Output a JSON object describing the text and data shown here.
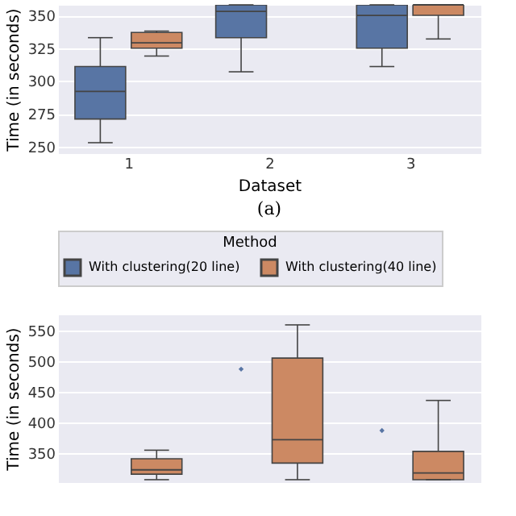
{
  "chart_data": [
    {
      "type": "box",
      "categories": [
        "1",
        "2",
        "3"
      ],
      "xlabel": "Dataset",
      "ylabel": "Time (in seconds)",
      "ylim": [
        245,
        358
      ],
      "yticks": [
        250,
        275,
        300,
        325,
        350
      ],
      "grid": "y",
      "legend": false,
      "annotations": [
        "(a)"
      ],
      "series": [
        {
          "color": "#5875a4",
          "boxes": [
            {
              "low": 253,
              "q1": 271,
              "median": 292,
              "q3": 311,
              "high": 333
            },
            {
              "low": 307,
              "q1": 333,
              "median": 353,
              "q3": 358,
              "high": 358
            },
            {
              "low": 311,
              "q1": 325,
              "median": 350,
              "q3": 358,
              "high": 358
            }
          ]
        },
        {
          "color": "#cc8963",
          "boxes": [
            {
              "low": 319,
              "q1": 325,
              "median": 329,
              "q3": 337,
              "high": 338
            },
            null,
            {
              "low": 332,
              "q1": 350,
              "median": 358,
              "q3": 358,
              "high": 358
            }
          ]
        }
      ]
    },
    {
      "type": "box",
      "categories": [
        null,
        null,
        null
      ],
      "ylabel": "Time (in seconds)",
      "ylim": [
        303,
        576
      ],
      "yticks": [
        350,
        400,
        450,
        500,
        550
      ],
      "grid": "y",
      "legend": "top",
      "legend_title": "Method",
      "tick_labels": "y",
      "series": [
        {
          "name": "With clustering(20 line)",
          "color": "#5875a4",
          "type": "scatter",
          "values": [
            null,
            487,
            387
          ]
        },
        {
          "name": "With clustering(40 line)",
          "color": "#cc8963",
          "boxes": [
            {
              "low": 307,
              "q1": 316,
              "median": 323,
              "q3": 341,
              "high": 355
            },
            {
              "low": 307,
              "q1": 334,
              "median": 372,
              "q3": 505,
              "high": 559
            },
            {
              "low": 307,
              "q1": 307,
              "median": 318,
              "q3": 353,
              "high": 436
            }
          ]
        }
      ]
    }
  ]
}
